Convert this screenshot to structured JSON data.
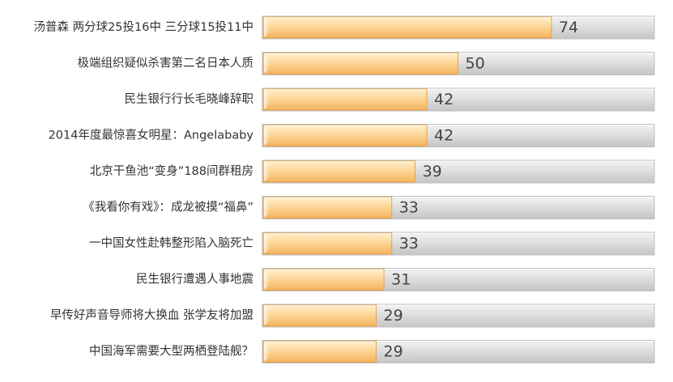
{
  "chart_data": {
    "type": "bar",
    "orientation": "horizontal",
    "categories": [
      "汤普森 两分球25投16中 三分球15投11中",
      "极端组织疑似杀害第二名日本人质",
      "民生银行行长毛晓峰辞职",
      "2014年度最惊喜女明星：Angelababy",
      "北京干鱼池“变身”188间群租房",
      "《我看你有戏》：成龙被摸“福鼻”",
      "一中国女性赴韩整形陷入脑死亡",
      "民生银行遭遇人事地震",
      "早传好声音导师将大换血 张学友将加盟",
      "中国海军需要大型两栖登陆舰？"
    ],
    "values": [
      74,
      50,
      42,
      42,
      39,
      33,
      33,
      31,
      29,
      29
    ],
    "data_labels": [
      "74",
      "50",
      "42",
      "42",
      "39",
      "33",
      "33",
      "31",
      "29",
      "29"
    ],
    "xlim": [
      0,
      100
    ],
    "grid": false,
    "colors": {
      "bar_light": "#fff1cf",
      "bar_mid": "#fbd08c",
      "bar_dark": "#f4b35f",
      "track_light": "#f4f4f4",
      "track_mid": "#dfdfdf",
      "track_dark": "#c5c5c5",
      "label_text": "#333333",
      "value_text": "#444444"
    }
  }
}
